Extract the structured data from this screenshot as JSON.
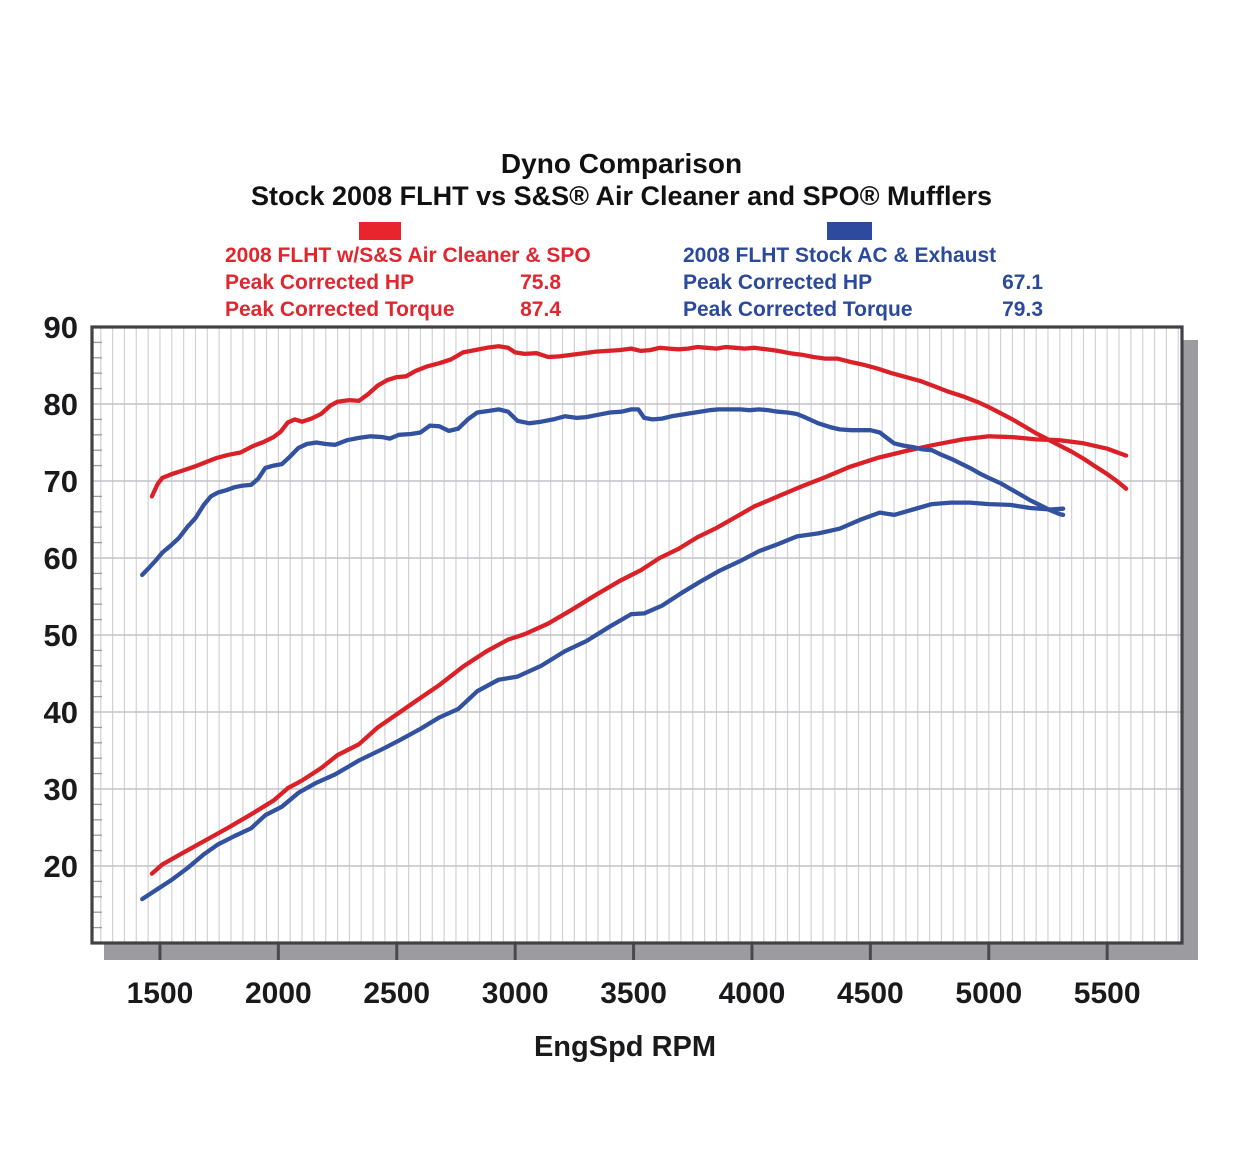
{
  "title": {
    "line1": "Dyno Comparison",
    "line2": "Stock 2008 FLHT vs S&S® Air Cleaner and SPO® Mufflers"
  },
  "legend": {
    "red": {
      "swatch_color": "#e8242c",
      "title": "2008 FLHT w/S&S Air Cleaner & SPO",
      "hp_label": "Peak Corrected HP",
      "hp_value": "75.8",
      "torque_label": "Peak Corrected Torque",
      "torque_value": "87.4"
    },
    "blue": {
      "swatch_color": "#2e4a9e",
      "title": "2008 FLHT Stock AC & Exhaust",
      "hp_label": "Peak Corrected HP",
      "hp_value": "67.1",
      "torque_label": "Peak Corrected Torque",
      "torque_value": "79.3"
    }
  },
  "chart_data": {
    "type": "line",
    "title": "Dyno Comparison — Stock 2008 FLHT vs S&S Air Cleaner and SPO Mufflers",
    "xlabel": "EngSpd RPM",
    "ylabel": "",
    "xlim": [
      1213,
      5816
    ],
    "ylim": [
      10,
      90
    ],
    "x_ticks": [
      1500,
      2000,
      2500,
      3000,
      3500,
      4000,
      4500,
      5000,
      5500
    ],
    "y_ticks": [
      90,
      80,
      70,
      60,
      50,
      40,
      30,
      20
    ],
    "grid": {
      "x_minor_step": 50,
      "y_major_step": 10,
      "y_minor_tick_step": 2
    },
    "legend_position": "top",
    "colors": {
      "red": "#da2128",
      "blue": "#32519f"
    },
    "series": [
      {
        "id": "stock-hp",
        "name": "2008 FLHT Stock AC & Exhaust — Corrected HP",
        "color": "#32519f",
        "peak": 67.1,
        "points": [
          [
            1425,
            15.7
          ],
          [
            1480,
            16.8
          ],
          [
            1545,
            18.1
          ],
          [
            1615,
            19.7
          ],
          [
            1685,
            21.5
          ],
          [
            1745,
            22.8
          ],
          [
            1815,
            23.9
          ],
          [
            1885,
            24.9
          ],
          [
            1945,
            26.6
          ],
          [
            2015,
            27.7
          ],
          [
            2085,
            29.5
          ],
          [
            2160,
            30.8
          ],
          [
            2240,
            31.9
          ],
          [
            2340,
            33.7
          ],
          [
            2440,
            35.2
          ],
          [
            2510,
            36.3
          ],
          [
            2600,
            37.8
          ],
          [
            2680,
            39.3
          ],
          [
            2760,
            40.4
          ],
          [
            2840,
            42.7
          ],
          [
            2930,
            44.2
          ],
          [
            3010,
            44.6
          ],
          [
            3110,
            46.0
          ],
          [
            3210,
            47.9
          ],
          [
            3300,
            49.2
          ],
          [
            3400,
            51.1
          ],
          [
            3490,
            52.7
          ],
          [
            3545,
            52.8
          ],
          [
            3620,
            53.8
          ],
          [
            3700,
            55.4
          ],
          [
            3780,
            56.9
          ],
          [
            3860,
            58.3
          ],
          [
            3950,
            59.6
          ],
          [
            4030,
            60.9
          ],
          [
            4110,
            61.8
          ],
          [
            4190,
            62.8
          ],
          [
            4280,
            63.2
          ],
          [
            4370,
            63.8
          ],
          [
            4460,
            65.0
          ],
          [
            4540,
            65.9
          ],
          [
            4600,
            65.6
          ],
          [
            4680,
            66.3
          ],
          [
            4760,
            67.0
          ],
          [
            4840,
            67.2
          ],
          [
            4920,
            67.2
          ],
          [
            5000,
            67.0
          ],
          [
            5090,
            66.9
          ],
          [
            5175,
            66.5
          ],
          [
            5260,
            66.3
          ],
          [
            5314,
            66.4
          ]
        ]
      },
      {
        "id": "ss-hp",
        "name": "2008 FLHT w/S&S Air Cleaner & SPO — Corrected HP",
        "color": "#da2128",
        "peak": 75.8,
        "points": [
          [
            1466,
            19.0
          ],
          [
            1510,
            20.2
          ],
          [
            1590,
            21.6
          ],
          [
            1690,
            23.3
          ],
          [
            1790,
            25.0
          ],
          [
            1890,
            26.8
          ],
          [
            1980,
            28.5
          ],
          [
            2040,
            30.1
          ],
          [
            2100,
            31.1
          ],
          [
            2180,
            32.7
          ],
          [
            2250,
            34.4
          ],
          [
            2340,
            35.8
          ],
          [
            2420,
            38.0
          ],
          [
            2500,
            39.7
          ],
          [
            2580,
            41.4
          ],
          [
            2680,
            43.5
          ],
          [
            2780,
            45.9
          ],
          [
            2880,
            47.9
          ],
          [
            2970,
            49.4
          ],
          [
            3040,
            50.1
          ],
          [
            3140,
            51.5
          ],
          [
            3240,
            53.3
          ],
          [
            3340,
            55.2
          ],
          [
            3440,
            57.0
          ],
          [
            3530,
            58.4
          ],
          [
            3610,
            60.0
          ],
          [
            3690,
            61.2
          ],
          [
            3770,
            62.7
          ],
          [
            3850,
            63.9
          ],
          [
            3930,
            65.3
          ],
          [
            4010,
            66.7
          ],
          [
            4110,
            68.0
          ],
          [
            4210,
            69.3
          ],
          [
            4310,
            70.5
          ],
          [
            4410,
            71.8
          ],
          [
            4530,
            73.0
          ],
          [
            4650,
            73.9
          ],
          [
            4770,
            74.7
          ],
          [
            4890,
            75.4
          ],
          [
            5000,
            75.8
          ],
          [
            5100,
            75.7
          ],
          [
            5200,
            75.4
          ],
          [
            5300,
            75.3
          ],
          [
            5400,
            74.9
          ],
          [
            5500,
            74.2
          ],
          [
            5580,
            73.3
          ]
        ]
      },
      {
        "id": "stock-torque",
        "name": "2008 FLHT Stock AC & Exhaust — Corrected Torque",
        "color": "#32519f",
        "peak": 79.3,
        "points": [
          [
            1425,
            57.8
          ],
          [
            1450,
            58.6
          ],
          [
            1480,
            59.6
          ],
          [
            1510,
            60.7
          ],
          [
            1545,
            61.6
          ],
          [
            1580,
            62.6
          ],
          [
            1615,
            64.0
          ],
          [
            1650,
            65.2
          ],
          [
            1685,
            66.9
          ],
          [
            1715,
            68.0
          ],
          [
            1745,
            68.5
          ],
          [
            1780,
            68.8
          ],
          [
            1815,
            69.2
          ],
          [
            1850,
            69.4
          ],
          [
            1885,
            69.5
          ],
          [
            1915,
            70.3
          ],
          [
            1945,
            71.7
          ],
          [
            1980,
            72.0
          ],
          [
            2015,
            72.2
          ],
          [
            2050,
            73.2
          ],
          [
            2085,
            74.3
          ],
          [
            2120,
            74.8
          ],
          [
            2160,
            75.0
          ],
          [
            2200,
            74.8
          ],
          [
            2240,
            74.7
          ],
          [
            2290,
            75.3
          ],
          [
            2340,
            75.6
          ],
          [
            2390,
            75.8
          ],
          [
            2440,
            75.7
          ],
          [
            2470,
            75.5
          ],
          [
            2510,
            76.0
          ],
          [
            2560,
            76.1
          ],
          [
            2600,
            76.3
          ],
          [
            2640,
            77.2
          ],
          [
            2680,
            77.1
          ],
          [
            2720,
            76.5
          ],
          [
            2760,
            76.8
          ],
          [
            2800,
            78.0
          ],
          [
            2840,
            78.9
          ],
          [
            2890,
            79.1
          ],
          [
            2930,
            79.3
          ],
          [
            2970,
            79.0
          ],
          [
            3010,
            77.8
          ],
          [
            3060,
            77.5
          ],
          [
            3110,
            77.7
          ],
          [
            3160,
            78.0
          ],
          [
            3210,
            78.4
          ],
          [
            3260,
            78.2
          ],
          [
            3300,
            78.3
          ],
          [
            3350,
            78.6
          ],
          [
            3400,
            78.9
          ],
          [
            3450,
            79.0
          ],
          [
            3490,
            79.3
          ],
          [
            3520,
            79.3
          ],
          [
            3545,
            78.2
          ],
          [
            3580,
            78.0
          ],
          [
            3620,
            78.1
          ],
          [
            3660,
            78.4
          ],
          [
            3700,
            78.6
          ],
          [
            3740,
            78.8
          ],
          [
            3780,
            79.0
          ],
          [
            3820,
            79.2
          ],
          [
            3860,
            79.3
          ],
          [
            3900,
            79.3
          ],
          [
            3950,
            79.3
          ],
          [
            3990,
            79.2
          ],
          [
            4030,
            79.3
          ],
          [
            4070,
            79.2
          ],
          [
            4110,
            79.0
          ],
          [
            4150,
            78.9
          ],
          [
            4190,
            78.7
          ],
          [
            4230,
            78.2
          ],
          [
            4280,
            77.5
          ],
          [
            4330,
            77.0
          ],
          [
            4370,
            76.7
          ],
          [
            4420,
            76.6
          ],
          [
            4500,
            76.6
          ],
          [
            4540,
            76.3
          ],
          [
            4570,
            75.6
          ],
          [
            4600,
            74.9
          ],
          [
            4640,
            74.6
          ],
          [
            4680,
            74.4
          ],
          [
            4720,
            74.1
          ],
          [
            4760,
            74.0
          ],
          [
            4800,
            73.4
          ],
          [
            4840,
            72.9
          ],
          [
            4880,
            72.3
          ],
          [
            4920,
            71.7
          ],
          [
            4960,
            71.0
          ],
          [
            5000,
            70.4
          ],
          [
            5050,
            69.7
          ],
          [
            5090,
            69.0
          ],
          [
            5130,
            68.3
          ],
          [
            5175,
            67.5
          ],
          [
            5220,
            66.8
          ],
          [
            5260,
            66.2
          ],
          [
            5300,
            65.7
          ],
          [
            5314,
            65.6
          ]
        ]
      },
      {
        "id": "ss-torque",
        "name": "2008 FLHT w/S&S Air Cleaner & SPO — Corrected Torque",
        "color": "#da2128",
        "peak": 87.4,
        "points": [
          [
            1466,
            68.0
          ],
          [
            1490,
            69.6
          ],
          [
            1510,
            70.4
          ],
          [
            1550,
            70.9
          ],
          [
            1590,
            71.3
          ],
          [
            1640,
            71.8
          ],
          [
            1690,
            72.4
          ],
          [
            1740,
            73.0
          ],
          [
            1790,
            73.4
          ],
          [
            1840,
            73.7
          ],
          [
            1890,
            74.5
          ],
          [
            1940,
            75.1
          ],
          [
            1980,
            75.7
          ],
          [
            2010,
            76.4
          ],
          [
            2040,
            77.6
          ],
          [
            2070,
            78.0
          ],
          [
            2100,
            77.7
          ],
          [
            2140,
            78.1
          ],
          [
            2180,
            78.7
          ],
          [
            2220,
            79.8
          ],
          [
            2250,
            80.3
          ],
          [
            2300,
            80.5
          ],
          [
            2340,
            80.4
          ],
          [
            2380,
            81.3
          ],
          [
            2420,
            82.4
          ],
          [
            2460,
            83.1
          ],
          [
            2500,
            83.5
          ],
          [
            2540,
            83.6
          ],
          [
            2580,
            84.3
          ],
          [
            2630,
            84.9
          ],
          [
            2680,
            85.3
          ],
          [
            2730,
            85.8
          ],
          [
            2780,
            86.7
          ],
          [
            2830,
            87.0
          ],
          [
            2880,
            87.3
          ],
          [
            2930,
            87.5
          ],
          [
            2970,
            87.3
          ],
          [
            3000,
            86.7
          ],
          [
            3040,
            86.5
          ],
          [
            3090,
            86.6
          ],
          [
            3140,
            86.1
          ],
          [
            3190,
            86.2
          ],
          [
            3240,
            86.4
          ],
          [
            3290,
            86.6
          ],
          [
            3340,
            86.8
          ],
          [
            3390,
            86.9
          ],
          [
            3440,
            87.0
          ],
          [
            3490,
            87.2
          ],
          [
            3530,
            86.9
          ],
          [
            3570,
            87.0
          ],
          [
            3610,
            87.3
          ],
          [
            3650,
            87.2
          ],
          [
            3690,
            87.1
          ],
          [
            3730,
            87.2
          ],
          [
            3770,
            87.4
          ],
          [
            3810,
            87.3
          ],
          [
            3850,
            87.2
          ],
          [
            3890,
            87.4
          ],
          [
            3930,
            87.3
          ],
          [
            3970,
            87.2
          ],
          [
            4010,
            87.3
          ],
          [
            4060,
            87.1
          ],
          [
            4110,
            86.9
          ],
          [
            4160,
            86.6
          ],
          [
            4210,
            86.4
          ],
          [
            4260,
            86.1
          ],
          [
            4310,
            85.9
          ],
          [
            4360,
            85.9
          ],
          [
            4410,
            85.5
          ],
          [
            4470,
            85.1
          ],
          [
            4530,
            84.6
          ],
          [
            4590,
            84.0
          ],
          [
            4650,
            83.5
          ],
          [
            4710,
            83.0
          ],
          [
            4770,
            82.3
          ],
          [
            4830,
            81.6
          ],
          [
            4890,
            81.0
          ],
          [
            4950,
            80.3
          ],
          [
            5000,
            79.6
          ],
          [
            5050,
            78.8
          ],
          [
            5100,
            78.0
          ],
          [
            5150,
            77.1
          ],
          [
            5200,
            76.2
          ],
          [
            5250,
            75.4
          ],
          [
            5300,
            74.6
          ],
          [
            5350,
            73.8
          ],
          [
            5400,
            72.9
          ],
          [
            5450,
            71.9
          ],
          [
            5500,
            70.9
          ],
          [
            5545,
            69.9
          ],
          [
            5580,
            69.0
          ]
        ]
      }
    ]
  }
}
